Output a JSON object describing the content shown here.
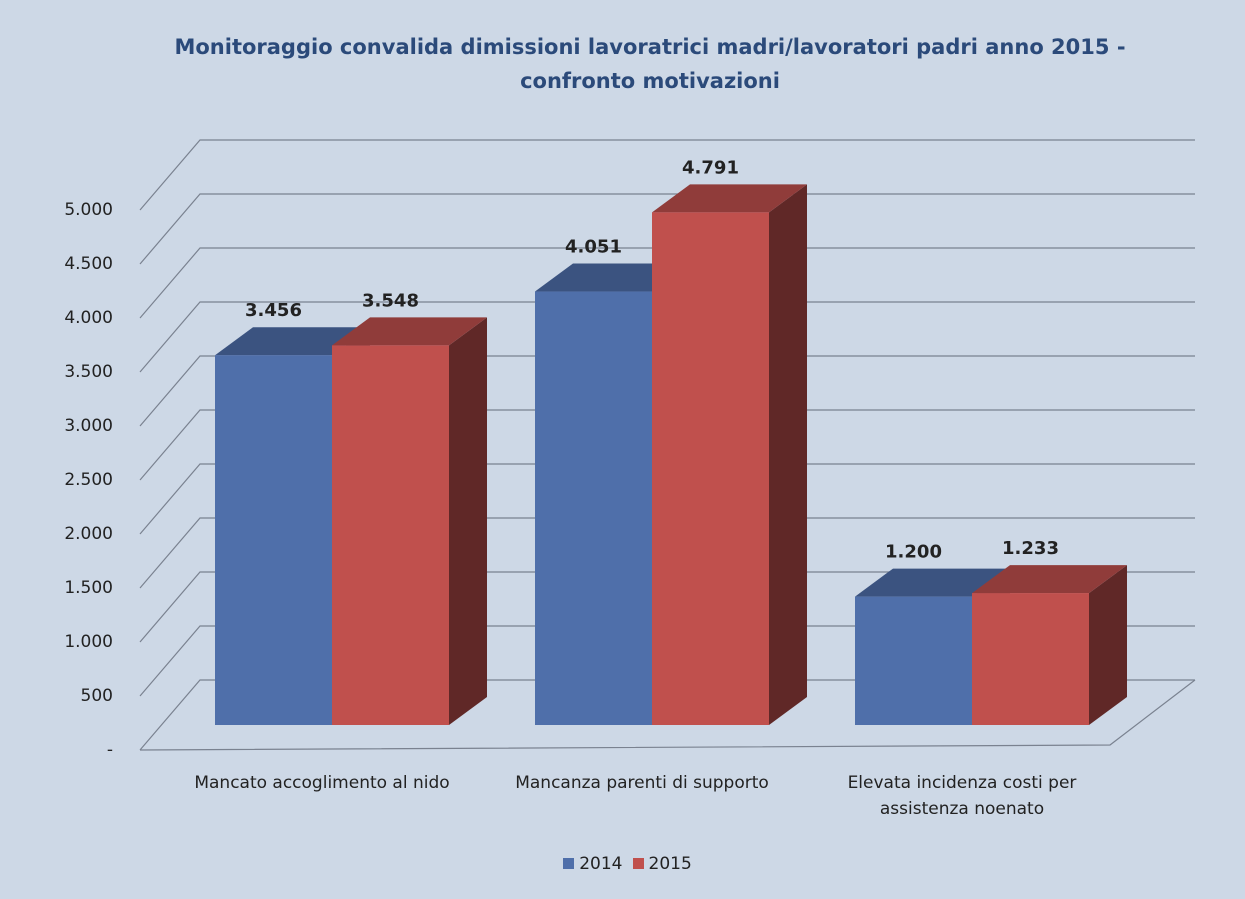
{
  "chart_data": {
    "type": "bar3d",
    "title": "Monitoraggio convalida dimissioni lavoratrici madri/lavoratori padri anno 2015 - confronto motivazioni",
    "categories": [
      "Mancato accoglimento al nido",
      "Mancanza parenti di supporto",
      "Elevata incidenza costi per assistenza noenato"
    ],
    "series": [
      {
        "name": "2014",
        "color": "#4f6faa",
        "values": [
          3456,
          4051,
          1200
        ],
        "value_labels": [
          "3.456",
          "4.051",
          "1.200"
        ]
      },
      {
        "name": "2015",
        "color": "#c0504d",
        "values": [
          3548,
          4791,
          1233
        ],
        "value_labels": [
          "3.548",
          "4.791",
          "1.233"
        ]
      }
    ],
    "ylim": [
      0,
      5000
    ],
    "yticks": [
      {
        "value": 0,
        "label": "-"
      },
      500,
      {
        "value": 1000,
        "label": "1.000"
      },
      {
        "value": 1500,
        "label": "1.500"
      },
      {
        "value": 2000,
        "label": "2.000"
      },
      {
        "value": 2500,
        "label": "2.500"
      },
      {
        "value": 3000,
        "label": "3.000"
      },
      {
        "value": 3500,
        "label": "3.500"
      },
      {
        "value": 4000,
        "label": "4.000"
      },
      {
        "value": 4500,
        "label": "4.500"
      },
      {
        "value": 5000,
        "label": "5.000"
      }
    ],
    "grid": true,
    "legend": "bottom"
  }
}
